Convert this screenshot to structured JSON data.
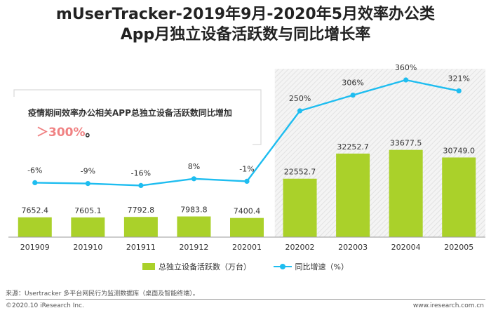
{
  "title_line1": "mUserTracker-2019年9月-2020年5月效率办公类",
  "title_line2": "App月独立设备活跃数与同比增长率",
  "annotation": {
    "text": "疫情期间效率办公相关APP总独立设备活跃数同比增加",
    "value": "＞300%",
    "suffix": "。"
  },
  "chart_data": {
    "type": "bar",
    "categories": [
      "201909",
      "201910",
      "201911",
      "201912",
      "202001",
      "202002",
      "202003",
      "202004",
      "202005"
    ],
    "series": [
      {
        "name": "总独立设备活跃数（万台）",
        "type": "bar",
        "values": [
          7652.4,
          7605.1,
          7792.8,
          7983.8,
          7400.4,
          22552.7,
          32252.7,
          33677.5,
          30749.0
        ],
        "labels": [
          "7652.4",
          "7605.1",
          "7792.8",
          "7983.8",
          "7400.4",
          "22552.7",
          "32252.7",
          "33677.5",
          "30749.0"
        ],
        "color": "#aad12a"
      },
      {
        "name": "同比增速（%）",
        "type": "line",
        "values": [
          -6,
          -9,
          -16,
          8,
          -1,
          250,
          306,
          360,
          321
        ],
        "labels": [
          "-6%",
          "-9%",
          "-16%",
          "8%",
          "-1%",
          "250%",
          "306%",
          "360%",
          "321%"
        ],
        "color": "#1ebdf0"
      }
    ],
    "highlight_categories": [
      "202002",
      "202003",
      "202004",
      "202005"
    ],
    "bar_ylim": [
      0,
      65000
    ],
    "line_ylim": [
      -200,
      400
    ],
    "legend_position": "bottom"
  },
  "source": "来源：Usertracker 多平台网民行为监测数据库（桌面及智能终端）。",
  "copyright": "©2020.10 iResearch Inc.",
  "website": "www.iresearch.com.cn"
}
